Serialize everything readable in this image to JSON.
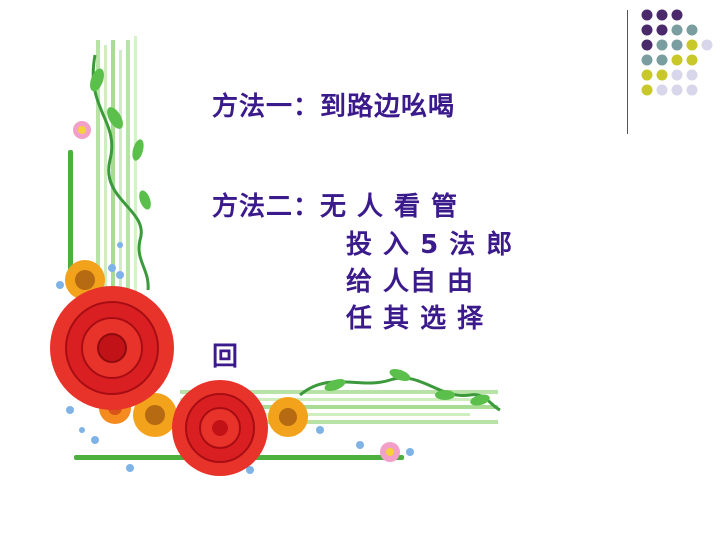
{
  "slide": {
    "method1": "方法一：到路边吆喝",
    "method2_line1": "方法二：无 人 看 管",
    "method2_line2": "投 入 5 法 郎",
    "method2_line3": "给 人自 由",
    "method2_line4": "任 其 选 择",
    "back_label": "回"
  },
  "decor": {
    "dot_colors": [
      "#4b2a6b",
      "#7a9e9f",
      "#c8c82a",
      "#d7d6ea"
    ],
    "dot_grid": [
      [
        "#4b2a6b",
        "#4b2a6b",
        "#4b2a6b",
        "",
        ""
      ],
      [
        "#4b2a6b",
        "#4b2a6b",
        "#7a9e9f",
        "#7a9e9f",
        ""
      ],
      [
        "#4b2a6b",
        "#7a9e9f",
        "#7a9e9f",
        "#c8c82a",
        "#d7d6ea"
      ],
      [
        "#7a9e9f",
        "#7a9e9f",
        "#c8c82a",
        "#c8c82a",
        ""
      ],
      [
        "#c8c82a",
        "#c8c82a",
        "#d7d6ea",
        "#d7d6ea",
        ""
      ],
      [
        "#c8c82a",
        "#d7d6ea",
        "#d7d6ea",
        "#d7d6ea",
        ""
      ]
    ]
  }
}
